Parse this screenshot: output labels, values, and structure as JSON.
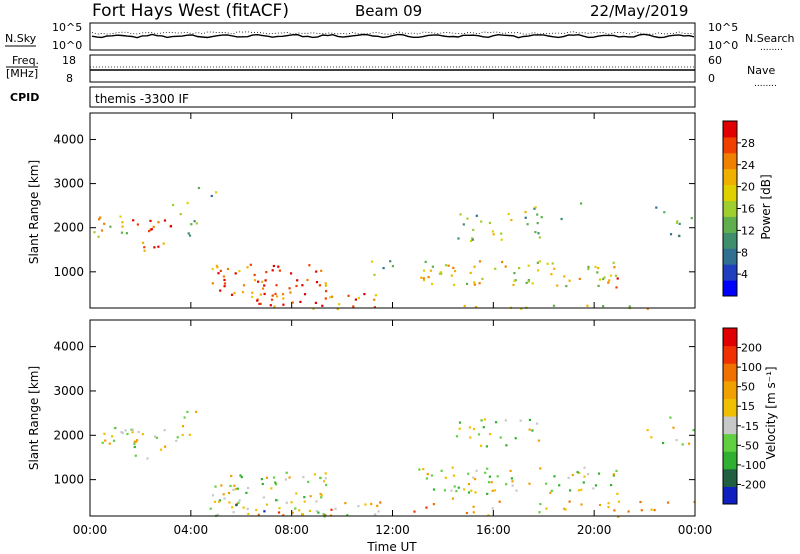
{
  "header": {
    "station": "Fort Hays West (fitACF)",
    "beam": "Beam 09",
    "date": "22/May/2019"
  },
  "status_panels": {
    "nsky_label": "N.Sky",
    "nsearch_label": "N.Search",
    "nsky_ticks": [
      "10^5",
      "10^0"
    ],
    "nsearch_ticks": [
      "10^5",
      "10^0"
    ],
    "freq_label_1": "Freq.",
    "freq_label_2": "[MHz]",
    "freq_ticks": [
      "18",
      "8"
    ],
    "nave_label": "Nave",
    "nave_ticks": [
      "60",
      "0"
    ],
    "cpid_label": "CPID",
    "cpid_value": "themis -3300 IF",
    "dots": "........"
  },
  "chart_data": [
    {
      "type": "heatmap",
      "title": "",
      "ylabel": "Slant Range [km]",
      "xlabel": "",
      "x_range_hours": [
        0,
        24
      ],
      "ylim": [
        180,
        4600
      ],
      "y_ticks": [
        "1000",
        "2000",
        "3000",
        "4000"
      ],
      "x_ticks": [
        "00:00",
        "04:00",
        "08:00",
        "12:00",
        "16:00",
        "20:00",
        "00:00"
      ],
      "colorbar": {
        "label": "Power [dB]",
        "ticks": [
          "4",
          "8",
          "12",
          "16",
          "20",
          "24",
          "28"
        ],
        "colors": [
          "#0000ff",
          "#1f3fbf",
          "#2f6f8f",
          "#3f8f6f",
          "#5faf4f",
          "#9fcf2f",
          "#e0d000",
          "#f0b000",
          "#f08000",
          "#f04000",
          "#e00000"
        ]
      },
      "scatter_regions": [
        {
          "t0": 0.0,
          "t1": 1.6,
          "r0": 1800,
          "r1": 2300,
          "density": 0.9,
          "level": 0.6
        },
        {
          "t0": 1.6,
          "t1": 3.2,
          "r0": 1500,
          "r1": 2200,
          "density": 0.9,
          "level": 0.85
        },
        {
          "t0": 3.2,
          "t1": 4.2,
          "r0": 1800,
          "r1": 2600,
          "density": 0.6,
          "level": 0.5
        },
        {
          "t0": 4.2,
          "t1": 5.1,
          "r0": 2600,
          "r1": 3150,
          "density": 0.3,
          "level": 0.4
        },
        {
          "t0": 4.8,
          "t1": 9.5,
          "r0": 500,
          "r1": 1200,
          "density": 0.95,
          "level": 0.85
        },
        {
          "t0": 5.5,
          "t1": 11.5,
          "r0": 180,
          "r1": 520,
          "density": 0.9,
          "level": 0.8
        },
        {
          "t0": 10.5,
          "t1": 12.0,
          "r0": 900,
          "r1": 1300,
          "density": 0.5,
          "level": 0.4
        },
        {
          "t0": 12.0,
          "t1": 24.0,
          "r0": 180,
          "r1": 260,
          "density": 0.7,
          "level": 0.6
        },
        {
          "t0": 13.0,
          "t1": 21.0,
          "r0": 700,
          "r1": 1300,
          "density": 0.8,
          "level": 0.6
        },
        {
          "t0": 14.5,
          "t1": 18.0,
          "r0": 1700,
          "r1": 2400,
          "density": 0.6,
          "level": 0.45
        },
        {
          "t0": 17.5,
          "t1": 19.5,
          "r0": 2000,
          "r1": 2600,
          "density": 0.25,
          "level": 0.35
        },
        {
          "t0": 22.0,
          "t1": 24.0,
          "r0": 1800,
          "r1": 2500,
          "density": 0.4,
          "level": 0.4
        },
        {
          "t0": 20.5,
          "t1": 21.2,
          "r0": 600,
          "r1": 900,
          "density": 0.9,
          "level": 0.95
        }
      ]
    },
    {
      "type": "heatmap",
      "title": "",
      "ylabel": "Slant Range [km]",
      "xlabel": "Time UT",
      "x_range_hours": [
        0,
        24
      ],
      "ylim": [
        180,
        4600
      ],
      "y_ticks": [
        "1000",
        "2000",
        "3000",
        "4000"
      ],
      "x_ticks": [
        "00:00",
        "04:00",
        "08:00",
        "12:00",
        "16:00",
        "20:00",
        "00:00"
      ],
      "colorbar": {
        "label": "Velocity [m s⁻¹]",
        "ticks": [
          "200",
          "100",
          "50",
          "15",
          "-15",
          "-50",
          "-100",
          "-200"
        ],
        "colors": [
          "#1020c0",
          "#206040",
          "#30b030",
          "#60d040",
          "#c8c8c8",
          "#f0c000",
          "#f0a000",
          "#f07000",
          "#f03000",
          "#e00000"
        ]
      },
      "scatter_regions": [
        {
          "t0": 0.0,
          "t1": 1.6,
          "r0": 1800,
          "r1": 2300,
          "density": 0.9,
          "level": 0.45
        },
        {
          "t0": 1.6,
          "t1": 3.2,
          "r0": 1500,
          "r1": 2200,
          "density": 0.9,
          "level": 0.45
        },
        {
          "t0": 3.2,
          "t1": 4.2,
          "r0": 1800,
          "r1": 2600,
          "density": 0.6,
          "level": 0.45
        },
        {
          "t0": 4.8,
          "t1": 9.5,
          "r0": 500,
          "r1": 1200,
          "density": 0.95,
          "level": 0.45
        },
        {
          "t0": 5.5,
          "t1": 11.5,
          "r0": 180,
          "r1": 520,
          "density": 0.9,
          "level": 0.6
        },
        {
          "t0": 4.5,
          "t1": 11.0,
          "r0": 180,
          "r1": 450,
          "density": 0.35,
          "level": 0.25
        },
        {
          "t0": 12.0,
          "t1": 24.0,
          "r0": 180,
          "r1": 600,
          "density": 0.35,
          "level": 0.6
        },
        {
          "t0": 13.0,
          "t1": 21.0,
          "r0": 700,
          "r1": 1300,
          "density": 0.8,
          "level": 0.45
        },
        {
          "t0": 14.5,
          "t1": 18.0,
          "r0": 1700,
          "r1": 2400,
          "density": 0.6,
          "level": 0.45
        },
        {
          "t0": 22.0,
          "t1": 24.0,
          "r0": 1800,
          "r1": 2500,
          "density": 0.4,
          "level": 0.45
        }
      ]
    }
  ]
}
